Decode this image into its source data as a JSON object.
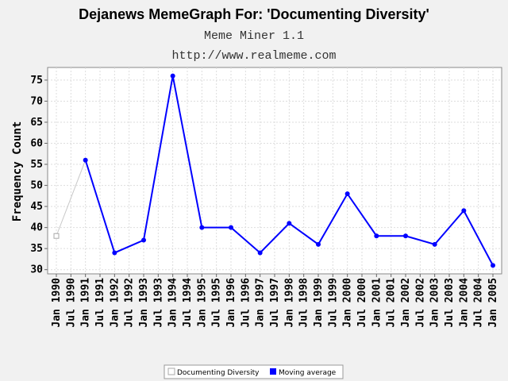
{
  "chart_data": {
    "type": "line",
    "title": "Dejanews MemeGraph For: 'Documenting Diversity'",
    "subtitles": [
      "Meme Miner 1.1",
      "http://www.realmeme.com"
    ],
    "ylabel": "Frequency Count",
    "xlabel": "",
    "ylim": [
      29,
      78
    ],
    "yticks": [
      30,
      35,
      40,
      45,
      50,
      55,
      60,
      65,
      70,
      75
    ],
    "categories": [
      "Jan 1990",
      "Jul 1990",
      "Jan 1991",
      "Jul 1991",
      "Jan 1992",
      "Jul 1992",
      "Jan 1993",
      "Jul 1993",
      "Jan 1994",
      "Jul 1994",
      "Jan 1995",
      "Jul 1995",
      "Jan 1996",
      "Jul 1996",
      "Jan 1997",
      "Jul 1997",
      "Jan 1998",
      "Jul 1998",
      "Jan 1999",
      "Jul 1999",
      "Jan 2000",
      "Jul 2000",
      "Jan 2001",
      "Jul 2001",
      "Jan 2002",
      "Jul 2002",
      "Jan 2003",
      "Jul 2003",
      "Jan 2004",
      "Jul 2004",
      "Jan 2005"
    ],
    "grid": true,
    "legend_position": "bottom",
    "series": [
      {
        "name": "Documenting Diversity",
        "color": "#c8c8c8",
        "points": [
          [
            "Jan 1990",
            38
          ],
          [
            "Jan 1991",
            56
          ]
        ]
      },
      {
        "name": "Moving average",
        "color": "#0000ff",
        "points": [
          [
            "Jan 1991",
            56
          ],
          [
            "Jan 1992",
            34
          ],
          [
            "Jan 1993",
            37
          ],
          [
            "Jan 1994",
            76
          ],
          [
            "Jan 1995",
            40
          ],
          [
            "Jan 1996",
            40
          ],
          [
            "Jan 1997",
            34
          ],
          [
            "Jan 1998",
            41
          ],
          [
            "Jan 1999",
            36
          ],
          [
            "Jan 2000",
            48
          ],
          [
            "Jan 2001",
            38
          ],
          [
            "Jan 2002",
            38
          ],
          [
            "Jan 2003",
            36
          ],
          [
            "Jan 2004",
            44
          ],
          [
            "Jan 2005",
            31
          ]
        ]
      }
    ]
  }
}
